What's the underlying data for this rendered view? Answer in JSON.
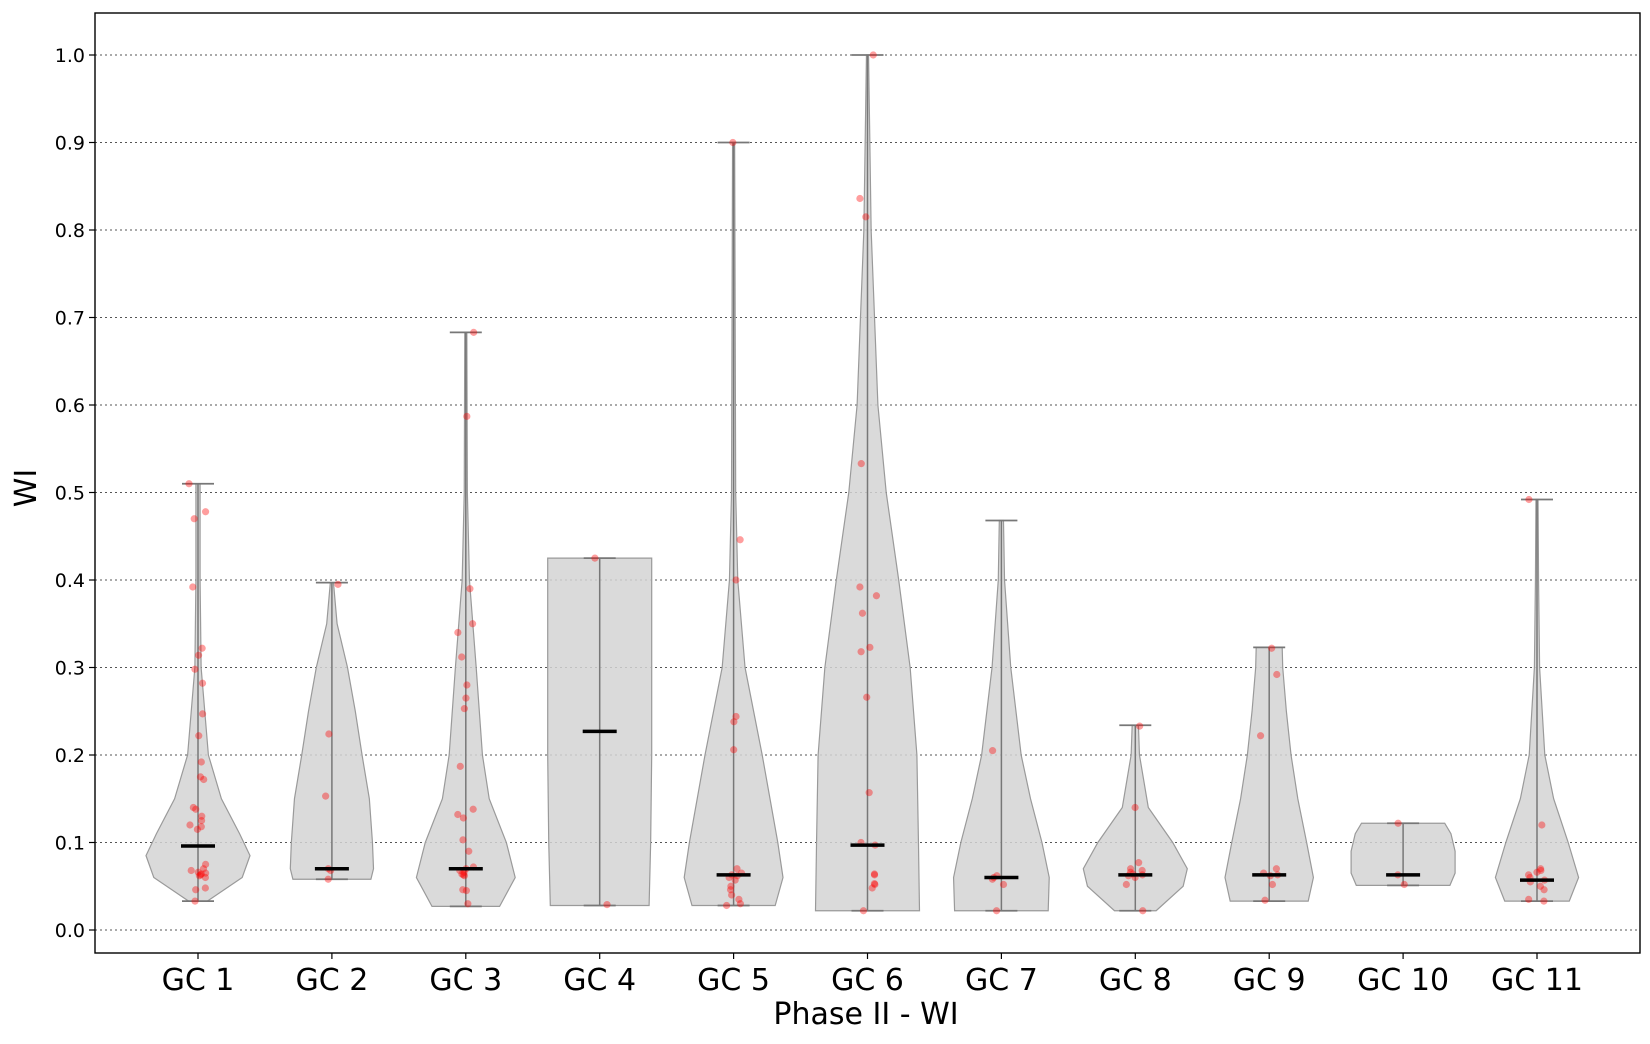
{
  "chart_data": {
    "type": "violin",
    "xlabel": "Phase II - WI",
    "ylabel": "WI",
    "ylim": [
      -0.027,
      1.05
    ],
    "yticks": [
      "0.0",
      "0.1",
      "0.2",
      "0.3",
      "0.4",
      "0.5",
      "0.6",
      "0.7",
      "0.8",
      "0.9",
      "1.0"
    ],
    "grid": "horizontal dotted",
    "colors": {
      "violin_fill": "#d3d3d3",
      "violin_edge": "#9a9a9a",
      "whisker": "#777777",
      "median": "#000000",
      "points": "#ff0000"
    },
    "categories": [
      "GC 1",
      "GC 2",
      "GC 3",
      "GC 4",
      "GC 5",
      "GC 6",
      "GC 7",
      "GC 8",
      "GC 9",
      "GC 10",
      "GC 11"
    ],
    "groups": [
      {
        "label": "GC 1",
        "min": 0.033,
        "max": 0.51,
        "median": 0.096,
        "density": [
          [
            0.033,
            0.18
          ],
          [
            0.06,
            0.85
          ],
          [
            0.085,
            1.0
          ],
          [
            0.11,
            0.8
          ],
          [
            0.15,
            0.45
          ],
          [
            0.2,
            0.2
          ],
          [
            0.3,
            0.06
          ],
          [
            0.4,
            0.04
          ],
          [
            0.51,
            0.04
          ]
        ],
        "points": [
          0.51,
          0.478,
          0.47,
          0.392,
          0.322,
          0.314,
          0.298,
          0.282,
          0.247,
          0.222,
          0.192,
          0.175,
          0.172,
          0.14,
          0.138,
          0.13,
          0.125,
          0.12,
          0.118,
          0.115,
          0.075,
          0.07,
          0.068,
          0.066,
          0.065,
          0.064,
          0.063,
          0.062,
          0.06,
          0.048,
          0.046,
          0.033
        ]
      },
      {
        "label": "GC 2",
        "min": 0.058,
        "max": 0.397,
        "median": 0.07,
        "density": [
          [
            0.058,
            0.75
          ],
          [
            0.07,
            0.8
          ],
          [
            0.1,
            0.78
          ],
          [
            0.15,
            0.72
          ],
          [
            0.2,
            0.58
          ],
          [
            0.25,
            0.45
          ],
          [
            0.3,
            0.3
          ],
          [
            0.35,
            0.1
          ],
          [
            0.397,
            0.03
          ]
        ],
        "points": [
          0.395,
          0.224,
          0.153,
          0.07,
          0.068,
          0.058
        ]
      },
      {
        "label": "GC 3",
        "min": 0.027,
        "max": 0.683,
        "median": 0.07,
        "density": [
          [
            0.027,
            0.65
          ],
          [
            0.06,
            0.95
          ],
          [
            0.1,
            0.78
          ],
          [
            0.15,
            0.45
          ],
          [
            0.2,
            0.32
          ],
          [
            0.3,
            0.2
          ],
          [
            0.4,
            0.07
          ],
          [
            0.5,
            0.03
          ],
          [
            0.683,
            0.02
          ]
        ],
        "points": [
          0.683,
          0.587,
          0.39,
          0.35,
          0.34,
          0.312,
          0.28,
          0.265,
          0.253,
          0.187,
          0.138,
          0.132,
          0.128,
          0.103,
          0.09,
          0.072,
          0.07,
          0.068,
          0.066,
          0.064,
          0.063,
          0.062,
          0.046,
          0.045,
          0.03
        ]
      },
      {
        "label": "GC 4",
        "min": 0.028,
        "max": 0.425,
        "median": 0.227,
        "density": [
          [
            0.028,
            0.95
          ],
          [
            0.1,
            0.98
          ],
          [
            0.2,
            1.0
          ],
          [
            0.3,
            1.0
          ],
          [
            0.4,
            1.0
          ],
          [
            0.425,
            1.0
          ]
        ],
        "points": [
          0.425,
          0.029
        ]
      },
      {
        "label": "GC 5",
        "min": 0.028,
        "max": 0.9,
        "median": 0.063,
        "density": [
          [
            0.028,
            0.8
          ],
          [
            0.06,
            0.95
          ],
          [
            0.1,
            0.85
          ],
          [
            0.2,
            0.55
          ],
          [
            0.3,
            0.22
          ],
          [
            0.4,
            0.08
          ],
          [
            0.5,
            0.04
          ],
          [
            0.7,
            0.03
          ],
          [
            0.9,
            0.02
          ]
        ],
        "points": [
          0.9,
          0.446,
          0.4,
          0.244,
          0.238,
          0.206,
          0.07,
          0.065,
          0.063,
          0.062,
          0.06,
          0.057,
          0.05,
          0.046,
          0.04,
          0.035,
          0.03,
          0.028
        ]
      },
      {
        "label": "GC 6",
        "min": 0.022,
        "max": 1.0,
        "median": 0.097,
        "density": [
          [
            0.022,
            1.0
          ],
          [
            0.1,
            0.98
          ],
          [
            0.2,
            0.95
          ],
          [
            0.3,
            0.82
          ],
          [
            0.4,
            0.6
          ],
          [
            0.5,
            0.36
          ],
          [
            0.6,
            0.2
          ],
          [
            0.8,
            0.07
          ],
          [
            1.0,
            0.02
          ]
        ],
        "points": [
          1.0,
          0.836,
          0.815,
          0.533,
          0.392,
          0.382,
          0.362,
          0.323,
          0.318,
          0.266,
          0.157,
          0.1,
          0.097,
          0.064,
          0.063,
          0.053,
          0.052,
          0.048,
          0.022
        ]
      },
      {
        "label": "GC 7",
        "min": 0.022,
        "max": 0.468,
        "median": 0.06,
        "density": [
          [
            0.022,
            0.9
          ],
          [
            0.06,
            0.92
          ],
          [
            0.1,
            0.78
          ],
          [
            0.15,
            0.56
          ],
          [
            0.2,
            0.38
          ],
          [
            0.3,
            0.18
          ],
          [
            0.4,
            0.06
          ],
          [
            0.468,
            0.04
          ]
        ],
        "points": [
          0.205,
          0.062,
          0.06,
          0.058,
          0.052,
          0.022
        ]
      },
      {
        "label": "GC 8",
        "min": 0.022,
        "max": 0.234,
        "median": 0.063,
        "density": [
          [
            0.022,
            0.4
          ],
          [
            0.05,
            0.92
          ],
          [
            0.07,
            1.0
          ],
          [
            0.1,
            0.72
          ],
          [
            0.14,
            0.25
          ],
          [
            0.2,
            0.08
          ],
          [
            0.234,
            0.06
          ]
        ],
        "points": [
          0.233,
          0.14,
          0.077,
          0.07,
          0.068,
          0.066,
          0.064,
          0.063,
          0.062,
          0.06,
          0.052,
          0.022
        ]
      },
      {
        "label": "GC 9",
        "min": 0.033,
        "max": 0.323,
        "median": 0.063,
        "density": [
          [
            0.033,
            0.75
          ],
          [
            0.06,
            0.85
          ],
          [
            0.1,
            0.72
          ],
          [
            0.15,
            0.55
          ],
          [
            0.2,
            0.42
          ],
          [
            0.25,
            0.33
          ],
          [
            0.3,
            0.26
          ],
          [
            0.323,
            0.25
          ]
        ],
        "points": [
          0.322,
          0.292,
          0.222,
          0.07,
          0.065,
          0.063,
          0.062,
          0.052,
          0.034
        ]
      },
      {
        "label": "GC 10",
        "min": 0.051,
        "max": 0.122,
        "median": 0.063,
        "density": [
          [
            0.051,
            0.9
          ],
          [
            0.065,
            1.0
          ],
          [
            0.09,
            1.0
          ],
          [
            0.11,
            0.92
          ],
          [
            0.122,
            0.8
          ]
        ],
        "points": [
          0.122,
          0.063,
          0.052
        ]
      },
      {
        "label": "GC 11",
        "min": 0.033,
        "max": 0.492,
        "median": 0.057,
        "density": [
          [
            0.033,
            0.62
          ],
          [
            0.06,
            0.8
          ],
          [
            0.1,
            0.6
          ],
          [
            0.15,
            0.32
          ],
          [
            0.2,
            0.15
          ],
          [
            0.3,
            0.05
          ],
          [
            0.4,
            0.03
          ],
          [
            0.492,
            0.02
          ]
        ],
        "points": [
          0.492,
          0.12,
          0.07,
          0.068,
          0.066,
          0.063,
          0.06,
          0.057,
          0.055,
          0.05,
          0.046,
          0.035,
          0.033
        ]
      }
    ]
  }
}
